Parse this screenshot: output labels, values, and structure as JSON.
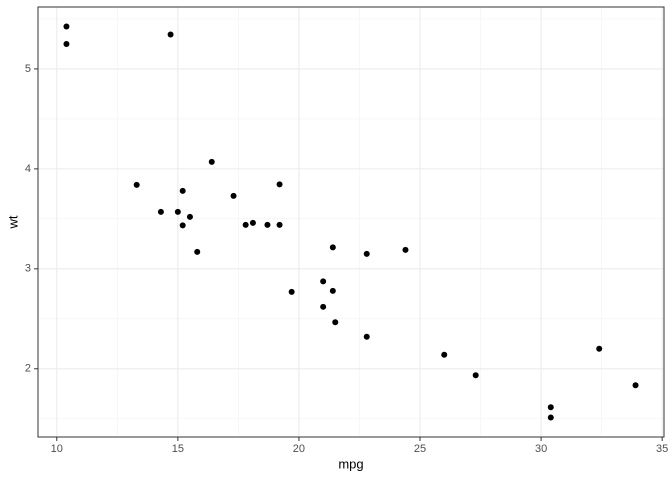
{
  "chart_data": {
    "type": "scatter",
    "x_label": "mpg",
    "y_label": "wt",
    "x": [
      21.0,
      21.0,
      22.8,
      21.4,
      18.7,
      18.1,
      14.3,
      24.4,
      22.8,
      19.2,
      17.8,
      16.4,
      17.3,
      15.2,
      10.4,
      10.4,
      14.7,
      32.4,
      30.4,
      33.9,
      21.5,
      15.5,
      15.2,
      13.3,
      19.2,
      27.3,
      26.0,
      30.4,
      15.8,
      19.7,
      15.0,
      21.4
    ],
    "values": [
      2.62,
      2.875,
      2.32,
      3.215,
      3.44,
      3.46,
      3.57,
      3.19,
      3.15,
      3.44,
      3.44,
      4.07,
      3.73,
      3.78,
      5.25,
      5.424,
      5.345,
      2.2,
      1.615,
      1.835,
      2.465,
      3.52,
      3.435,
      3.84,
      3.845,
      1.935,
      2.14,
      1.513,
      3.17,
      2.77,
      3.57,
      2.78
    ],
    "color": "#000000",
    "xlim": [
      9.225,
      35.075
    ],
    "xticks": [
      10,
      15,
      20,
      25,
      30,
      35
    ],
    "xminor": [
      12.5,
      17.5,
      22.5,
      27.5,
      32.5
    ],
    "ylim": [
      1.3175,
      5.6196
    ],
    "yticks": [
      2,
      3,
      4,
      5
    ],
    "yminor": [
      1.5,
      2.5,
      3.5,
      4.5,
      5.5
    ],
    "grid": true
  }
}
